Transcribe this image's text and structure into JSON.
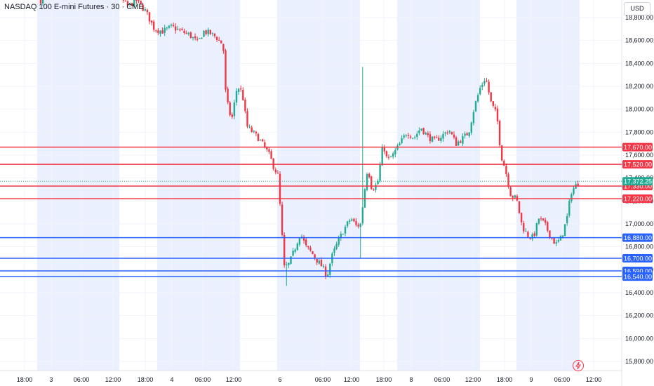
{
  "header": {
    "title": "NASDAQ 100 E-mini Futures · 30 · CME",
    "currency": "USD"
  },
  "colors": {
    "up": "#22ab94",
    "down": "#f23645",
    "red_level": "#f23645",
    "blue_level": "#2962ff",
    "session_band": "#eaf0fd",
    "grid": "#f0f3fa",
    "last_price": "#22ab94"
  },
  "chart_data": {
    "type": "candlestick",
    "title": "NASDAQ 100 E-mini Futures · 30 · CME",
    "ylim": [
      15700,
      18980
    ],
    "y_ticks": [
      15800,
      16000,
      16200,
      16400,
      16600,
      16800,
      17000,
      17200,
      17400,
      17600,
      17800,
      18000,
      18200,
      18400,
      18600,
      18800
    ],
    "y_tick_labels": [
      "15,800.00",
      "16,000.00",
      "16,200.00",
      "16,400.00",
      "16,600.00",
      "16,800.00",
      "17,000.00",
      "17,200.00",
      "17,400.00",
      "17,600.00",
      "17,800.00",
      "18,000.00",
      "18,200.00",
      "18,400.00",
      "18,600.00",
      "18,800.00"
    ],
    "x_ticks": [
      "18:00",
      "3",
      "06:00",
      "12:00",
      "18:00",
      "4",
      "06:00",
      "12:00",
      "6",
      "06:00",
      "12:00",
      "18:00",
      "8",
      "06:00",
      "12:00",
      "18:00",
      "9",
      "06:00",
      "12:00"
    ],
    "grid": true,
    "price_levels": [
      {
        "price": 17670,
        "label": "17,670.00",
        "color": "red"
      },
      {
        "price": 17520,
        "label": "17,520.00",
        "color": "red"
      },
      {
        "price": 17330,
        "label": "17,330.00",
        "color": "red"
      },
      {
        "price": 17220,
        "label": "17,220.00",
        "color": "red"
      },
      {
        "price": 16880,
        "label": "16,880.00",
        "color": "blue"
      },
      {
        "price": 16700,
        "label": "16,700.00",
        "color": "blue"
      },
      {
        "price": 16590,
        "label": "16,590.00",
        "color": "blue"
      },
      {
        "price": 16540,
        "label": "16,540.00",
        "color": "blue"
      }
    ],
    "last_price": {
      "price": 17372.25,
      "label": "17,372.25"
    },
    "path_points": [
      [
        58,
        18950
      ],
      [
        70,
        18980
      ],
      [
        80,
        18990
      ],
      [
        90,
        18980
      ],
      [
        100,
        18990
      ],
      [
        170,
        18980
      ],
      [
        182,
        18900
      ],
      [
        195,
        18950
      ],
      [
        208,
        18850
      ],
      [
        220,
        18700
      ],
      [
        232,
        18680
      ],
      [
        245,
        18720
      ],
      [
        258,
        18680
      ],
      [
        270,
        18650
      ],
      [
        282,
        18580
      ],
      [
        290,
        18680
      ],
      [
        300,
        18660
      ],
      [
        308,
        18630
      ],
      [
        318,
        18560
      ],
      [
        322,
        18100
      ],
      [
        330,
        17900
      ],
      [
        338,
        18200
      ],
      [
        345,
        18150
      ],
      [
        352,
        17850
      ],
      [
        360,
        17800
      ],
      [
        368,
        17750
      ],
      [
        376,
        17680
      ],
      [
        384,
        17600
      ],
      [
        390,
        17500
      ],
      [
        396,
        17420
      ],
      [
        400,
        17080
      ],
      [
        405,
        16620
      ],
      [
        412,
        16650
      ],
      [
        420,
        16780
      ],
      [
        428,
        16920
      ],
      [
        436,
        16800
      ],
      [
        444,
        16750
      ],
      [
        452,
        16680
      ],
      [
        460,
        16620
      ],
      [
        466,
        16540
      ],
      [
        472,
        16700
      ],
      [
        480,
        16820
      ],
      [
        490,
        16950
      ],
      [
        500,
        17050
      ],
      [
        508,
        16980
      ],
      [
        514,
        17000
      ],
      [
        518,
        17220
      ],
      [
        524,
        17500
      ],
      [
        530,
        17300
      ],
      [
        538,
        17350
      ],
      [
        546,
        17700
      ],
      [
        552,
        17550
      ],
      [
        560,
        17600
      ],
      [
        570,
        17700
      ],
      [
        580,
        17800
      ],
      [
        590,
        17750
      ],
      [
        600,
        17840
      ],
      [
        610,
        17760
      ],
      [
        620,
        17720
      ],
      [
        630,
        17770
      ],
      [
        640,
        17820
      ],
      [
        650,
        17700
      ],
      [
        660,
        17750
      ],
      [
        668,
        17800
      ],
      [
        676,
        18020
      ],
      [
        684,
        18180
      ],
      [
        692,
        18280
      ],
      [
        700,
        18050
      ],
      [
        708,
        17950
      ],
      [
        714,
        17600
      ],
      [
        720,
        17480
      ],
      [
        728,
        17250
      ],
      [
        736,
        17220
      ],
      [
        744,
        16980
      ],
      [
        752,
        16900
      ],
      [
        760,
        16880
      ],
      [
        768,
        17050
      ],
      [
        776,
        17000
      ],
      [
        784,
        16900
      ],
      [
        792,
        16820
      ],
      [
        800,
        16880
      ],
      [
        808,
        17050
      ],
      [
        814,
        17280
      ],
      [
        820,
        17330
      ],
      [
        826,
        17372
      ]
    ]
  }
}
